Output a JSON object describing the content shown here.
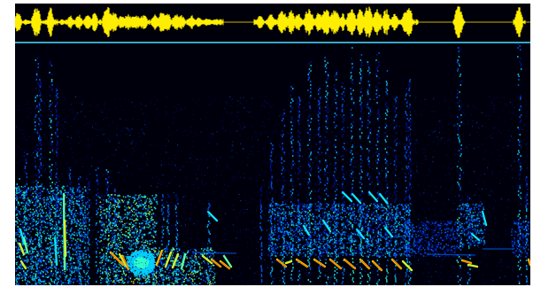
{
  "viewer": {
    "waveform_color": "#ffee00",
    "baseline_color": "#c8b400",
    "divider_color": "#3aa6c8",
    "background_color": "#000008"
  },
  "colormap": {
    "name": "jet",
    "stops": [
      "#000010",
      "#0010a0",
      "#0060ff",
      "#00d0ff",
      "#30ffd0",
      "#c0ff40",
      "#ffd000",
      "#ff4000"
    ]
  }
}
